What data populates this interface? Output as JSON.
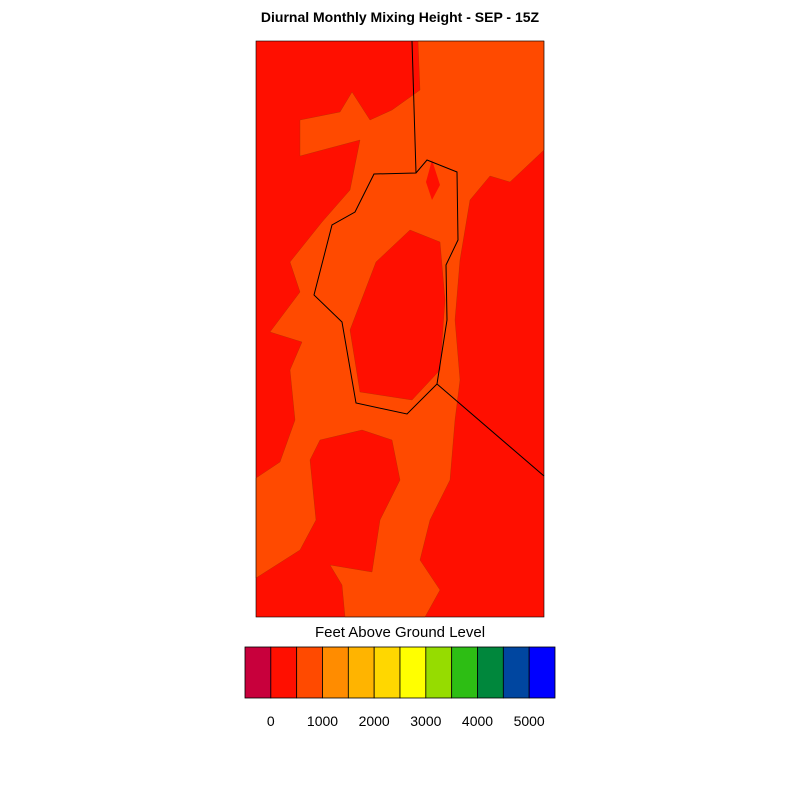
{
  "title": "Diurnal Monthly Mixing Height - SEP - 15Z",
  "colorbar": {
    "label": "Feet Above Ground Level",
    "colors": [
      "#c8003c",
      "#ff0f00",
      "#ff4a00",
      "#ff8c00",
      "#ffb400",
      "#ffd700",
      "#ffff00",
      "#96dc00",
      "#2dbe14",
      "#00873c",
      "#0046a0",
      "#0000ff"
    ],
    "lim": [
      -500,
      5500
    ],
    "ticks": [
      0,
      1000,
      2000,
      3000,
      4000,
      5000
    ]
  }
}
